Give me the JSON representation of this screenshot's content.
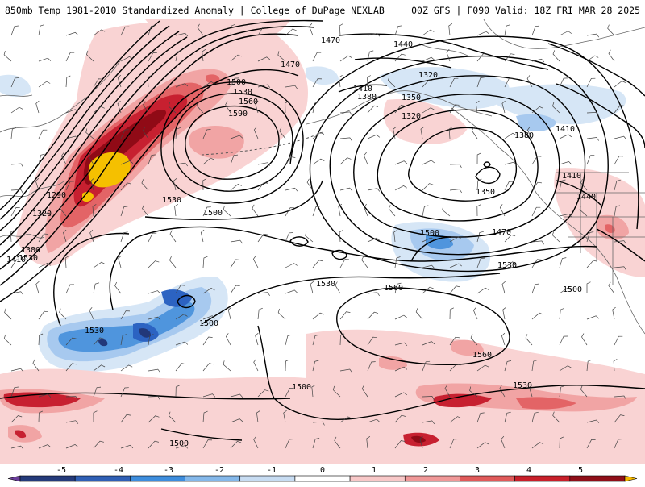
{
  "header": {
    "title_left": "850mb Temp 1981-2010 Standardized Anomaly | College of DuPage NEXLAB",
    "title_right": "00Z GFS | F090 Valid: 18Z FRI MAR 28 2025"
  },
  "contour_labels": [
    "1470",
    "1440",
    "1470",
    "1500",
    "1530",
    "1560",
    "1590",
    "1410",
    "1380",
    "1350",
    "1320",
    "1290",
    "1320",
    "1380",
    "1410",
    "1530",
    "1500",
    "1410",
    "1380",
    "1320",
    "1350",
    "1410",
    "1440",
    "1500",
    "1470",
    "1530",
    "1500",
    "1530",
    "1560",
    "1530",
    "1500",
    "1560",
    "1530",
    "1500",
    "1530",
    "1500"
  ],
  "colorbar": {
    "ticks": [
      "-5",
      "-4",
      "-3",
      "-2",
      "-1",
      "0",
      "1",
      "2",
      "3",
      "4",
      "5"
    ],
    "colors": [
      "#6a3d9a",
      "#243a7a",
      "#2f5fb5",
      "#3d8ddd",
      "#84b8ea",
      "#c7dcf2",
      "#ffffff",
      "#f8c8c8",
      "#f09898",
      "#e05a5a",
      "#c81f2a",
      "#8f0e18",
      "#f5b800"
    ]
  },
  "colors": {
    "anom_pos1": "#f9d3d3",
    "anom_pos2": "#f1a4a4",
    "anom_pos3": "#e36466",
    "anom_pos4": "#c72030",
    "anom_pos5": "#900a16",
    "anom_extreme": "#f5c000",
    "anom_neg1": "#d6e6f6",
    "anom_neg2": "#a7c9ef",
    "anom_neg3": "#4f95dd",
    "anom_neg4": "#2c63c2",
    "anom_neg5": "#22387a"
  }
}
